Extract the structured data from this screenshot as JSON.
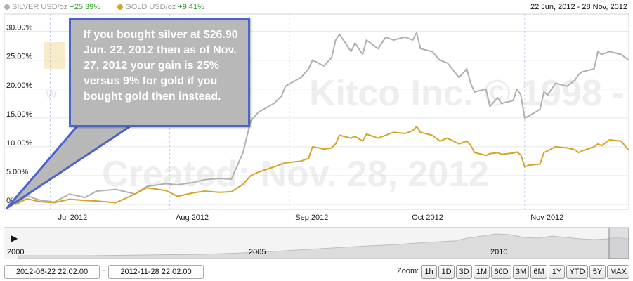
{
  "legend": {
    "silver_label": "SILVER USD/oz",
    "silver_change": "+25.39%",
    "gold_label": "GOLD USD/oz",
    "gold_change": "+9.41%",
    "silver_color": "#b0b0b0",
    "gold_color": "#d4a527"
  },
  "date_range": "22 Jun, 2012 - 28 Nov, 2012",
  "annotation": "If you bought silver at $26.90 Jun. 22, 2012 then as of Nov. 27, 2012 your gain is 25% versus 9% for gold if you bought gold then instead.",
  "watermark": {
    "line1": "Kitco Inc. © 1998 - 2012",
    "line2": "Created: Nov. 28, 2012",
    "logo_partial": "w"
  },
  "navigator": {
    "play_icon": "play-icon",
    "years": [
      "2000",
      "2005",
      "2010"
    ]
  },
  "controls": {
    "start_date": "2012-06-22 22:02:00",
    "separator": "-",
    "end_date": "2012-11-28 22:02:00",
    "zoom_label": "Zoom:",
    "zoom_buttons": [
      "1h",
      "1D",
      "3D",
      "1M",
      "60D",
      "3M",
      "6M",
      "1Y",
      "YTD",
      "5Y",
      "MAX"
    ]
  },
  "chart_data": {
    "type": "line",
    "title": "",
    "xlabel": "",
    "ylabel": "",
    "x_ticks": [
      "Jul 2012",
      "Aug 2012",
      "Sep 2012",
      "Oct 2012",
      "Nov 2012"
    ],
    "y_ticks": [
      "0%",
      "5.00%",
      "10.00%",
      "15.00%",
      "20.00%",
      "25.00%",
      "30.00%"
    ],
    "ylim": [
      0,
      33
    ],
    "xlim": [
      "2012-06-22",
      "2012-11-28"
    ],
    "grid": true,
    "legend_position": "top-left",
    "series": [
      {
        "name": "SILVER USD/oz",
        "color": "#b0b0b0",
        "points": [
          [
            "2012-06-22",
            0.0
          ],
          [
            "2012-06-25",
            1.5
          ],
          [
            "2012-06-28",
            0.8
          ],
          [
            "2012-07-02",
            0.4
          ],
          [
            "2012-07-06",
            1.8
          ],
          [
            "2012-07-10",
            1.2
          ],
          [
            "2012-07-13",
            2.3
          ],
          [
            "2012-07-18",
            2.6
          ],
          [
            "2012-07-23",
            1.8
          ],
          [
            "2012-07-26",
            3.1
          ],
          [
            "2012-07-31",
            3.6
          ],
          [
            "2012-08-03",
            3.4
          ],
          [
            "2012-08-07",
            3.8
          ],
          [
            "2012-08-10",
            4.3
          ],
          [
            "2012-08-14",
            4.5
          ],
          [
            "2012-08-17",
            4.4
          ],
          [
            "2012-08-20",
            9.0
          ],
          [
            "2012-08-22",
            14.5
          ],
          [
            "2012-08-24",
            16.0
          ],
          [
            "2012-08-28",
            17.5
          ],
          [
            "2012-08-30",
            18.8
          ],
          [
            "2012-08-31",
            20.5
          ],
          [
            "2012-09-04",
            22.0
          ],
          [
            "2012-09-06",
            23.5
          ],
          [
            "2012-09-07",
            25.0
          ],
          [
            "2012-09-10",
            24.0
          ],
          [
            "2012-09-12",
            25.5
          ],
          [
            "2012-09-13",
            28.5
          ],
          [
            "2012-09-14",
            29.5
          ],
          [
            "2012-09-17",
            26.5
          ],
          [
            "2012-09-18",
            28.0
          ],
          [
            "2012-09-20",
            26.0
          ],
          [
            "2012-09-21",
            28.5
          ],
          [
            "2012-09-24",
            27.0
          ],
          [
            "2012-09-26",
            29.0
          ],
          [
            "2012-09-28",
            28.5
          ],
          [
            "2012-10-01",
            29.0
          ],
          [
            "2012-10-03",
            28.5
          ],
          [
            "2012-10-04",
            29.8
          ],
          [
            "2012-10-05",
            27.0
          ],
          [
            "2012-10-08",
            26.5
          ],
          [
            "2012-10-10",
            25.0
          ],
          [
            "2012-10-12",
            24.5
          ],
          [
            "2012-10-15",
            22.0
          ],
          [
            "2012-10-17",
            23.5
          ],
          [
            "2012-10-18",
            21.0
          ],
          [
            "2012-10-19",
            19.5
          ],
          [
            "2012-10-22",
            20.0
          ],
          [
            "2012-10-23",
            17.0
          ],
          [
            "2012-10-25",
            18.5
          ],
          [
            "2012-10-26",
            17.5
          ],
          [
            "2012-10-29",
            18.0
          ],
          [
            "2012-10-30",
            20.0
          ],
          [
            "2012-10-31",
            19.0
          ],
          [
            "2012-11-01",
            15.0
          ],
          [
            "2012-11-02",
            15.3
          ],
          [
            "2012-11-05",
            16.5
          ],
          [
            "2012-11-06",
            19.5
          ],
          [
            "2012-11-07",
            19.0
          ],
          [
            "2012-11-09",
            21.0
          ],
          [
            "2012-11-12",
            20.5
          ],
          [
            "2012-11-14",
            21.5
          ],
          [
            "2012-11-15",
            22.5
          ],
          [
            "2012-11-16",
            23.0
          ],
          [
            "2012-11-19",
            23.5
          ],
          [
            "2012-11-20",
            26.5
          ],
          [
            "2012-11-21",
            26.0
          ],
          [
            "2012-11-23",
            26.5
          ],
          [
            "2012-11-26",
            26.0
          ],
          [
            "2012-11-28",
            25.0
          ]
        ]
      },
      {
        "name": "GOLD USD/oz",
        "color": "#d4a527",
        "points": [
          [
            "2012-06-22",
            0.0
          ],
          [
            "2012-06-25",
            1.0
          ],
          [
            "2012-06-28",
            0.5
          ],
          [
            "2012-07-02",
            0.3
          ],
          [
            "2012-07-06",
            0.9
          ],
          [
            "2012-07-10",
            0.7
          ],
          [
            "2012-07-13",
            0.6
          ],
          [
            "2012-07-18",
            0.3
          ],
          [
            "2012-07-23",
            1.8
          ],
          [
            "2012-07-26",
            2.9
          ],
          [
            "2012-07-31",
            2.4
          ],
          [
            "2012-08-03",
            1.4
          ],
          [
            "2012-08-07",
            2.0
          ],
          [
            "2012-08-10",
            2.3
          ],
          [
            "2012-08-14",
            2.1
          ],
          [
            "2012-08-17",
            2.2
          ],
          [
            "2012-08-20",
            3.5
          ],
          [
            "2012-08-22",
            5.0
          ],
          [
            "2012-08-24",
            5.6
          ],
          [
            "2012-08-28",
            6.5
          ],
          [
            "2012-08-30",
            7.0
          ],
          [
            "2012-08-31",
            7.2
          ],
          [
            "2012-09-04",
            7.5
          ],
          [
            "2012-09-06",
            8.0
          ],
          [
            "2012-09-07",
            10.0
          ],
          [
            "2012-09-10",
            9.6
          ],
          [
            "2012-09-12",
            9.8
          ],
          [
            "2012-09-13",
            10.5
          ],
          [
            "2012-09-14",
            12.0
          ],
          [
            "2012-09-17",
            11.5
          ],
          [
            "2012-09-18",
            11.8
          ],
          [
            "2012-09-20",
            11.0
          ],
          [
            "2012-09-21",
            12.2
          ],
          [
            "2012-09-24",
            11.5
          ],
          [
            "2012-09-26",
            12.0
          ],
          [
            "2012-09-28",
            12.5
          ],
          [
            "2012-10-01",
            12.3
          ],
          [
            "2012-10-03",
            12.8
          ],
          [
            "2012-10-04",
            13.5
          ],
          [
            "2012-10-05",
            12.5
          ],
          [
            "2012-10-08",
            12.0
          ],
          [
            "2012-10-10",
            11.0
          ],
          [
            "2012-10-12",
            11.5
          ],
          [
            "2012-10-15",
            10.5
          ],
          [
            "2012-10-17",
            11.0
          ],
          [
            "2012-10-18",
            10.3
          ],
          [
            "2012-10-19",
            9.0
          ],
          [
            "2012-10-22",
            8.5
          ],
          [
            "2012-10-23",
            8.8
          ],
          [
            "2012-10-25",
            9.0
          ],
          [
            "2012-10-26",
            8.7
          ],
          [
            "2012-10-29",
            8.9
          ],
          [
            "2012-10-30",
            9.1
          ],
          [
            "2012-10-31",
            8.6
          ],
          [
            "2012-11-01",
            6.5
          ],
          [
            "2012-11-02",
            6.8
          ],
          [
            "2012-11-05",
            7.0
          ],
          [
            "2012-11-06",
            9.0
          ],
          [
            "2012-11-07",
            9.3
          ],
          [
            "2012-11-09",
            10.0
          ],
          [
            "2012-11-12",
            9.8
          ],
          [
            "2012-11-14",
            9.5
          ],
          [
            "2012-11-15",
            9.0
          ],
          [
            "2012-11-16",
            9.3
          ],
          [
            "2012-11-19",
            10.0
          ],
          [
            "2012-11-20",
            10.5
          ],
          [
            "2012-11-21",
            10.2
          ],
          [
            "2012-11-23",
            11.2
          ],
          [
            "2012-11-26",
            11.0
          ],
          [
            "2012-11-28",
            9.4
          ]
        ]
      }
    ]
  }
}
